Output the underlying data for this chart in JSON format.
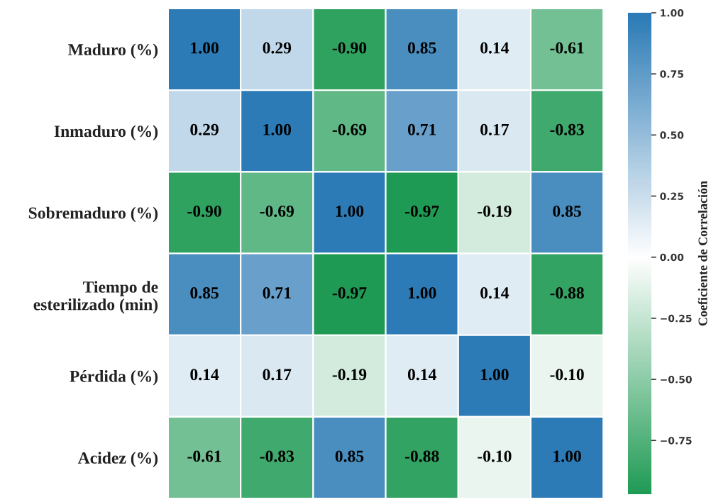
{
  "chart_data": {
    "type": "heatmap",
    "categories": [
      null,
      null,
      null,
      null,
      null,
      null
    ],
    "y_categories": [
      "Maduro (%)",
      "Inmaduro (%)",
      "Sobremaduro (%)",
      "Tiempo de\nesterilizado (min)",
      "Pérdida (%)",
      "Acidez (%)"
    ],
    "cells": [
      [
        1.0,
        0.29,
        -0.9,
        0.85,
        0.14,
        -0.61
      ],
      [
        0.29,
        1.0,
        -0.69,
        0.71,
        0.17,
        -0.83
      ],
      [
        -0.9,
        -0.69,
        1.0,
        -0.97,
        -0.19,
        0.85
      ],
      [
        0.85,
        0.71,
        -0.97,
        1.0,
        0.14,
        -0.88
      ],
      [
        0.14,
        0.17,
        -0.19,
        0.14,
        1.0,
        -0.1
      ],
      [
        -0.61,
        -0.83,
        0.85,
        -0.88,
        -0.1,
        1.0
      ]
    ],
    "cell_labels": [
      [
        "1.00",
        "0.29",
        "-0.90",
        "0.85",
        "0.14",
        "-0.61"
      ],
      [
        "0.29",
        "1.00",
        "-0.69",
        "0.71",
        "0.17",
        "-0.83"
      ],
      [
        "-0.90",
        "-0.69",
        "1.00",
        "-0.97",
        "-0.19",
        "0.85"
      ],
      [
        "0.85",
        "0.71",
        "-0.97",
        "1.00",
        "0.14",
        "-0.88"
      ],
      [
        "0.14",
        "0.17",
        "-0.19",
        "0.14",
        "1.00",
        "-0.10"
      ],
      [
        "-0.61",
        "-0.83",
        "0.85",
        "-0.88",
        "-0.10",
        "1.00"
      ]
    ],
    "clim": [
      -0.97,
      1.0
    ],
    "cticks": [
      {
        "value": -0.75,
        "label": "−0.75"
      },
      {
        "value": -0.5,
        "label": "−0.50"
      },
      {
        "value": -0.25,
        "label": "−0.25"
      },
      {
        "value": 0,
        "label": "0.00"
      },
      {
        "value": 0.25,
        "label": "0.25"
      },
      {
        "value": 0.5,
        "label": "0.50"
      },
      {
        "value": 0.75,
        "label": "0.75"
      },
      {
        "value": 1.0,
        "label": "1.00"
      }
    ],
    "clabel": "Coeficiente de Correlación"
  }
}
